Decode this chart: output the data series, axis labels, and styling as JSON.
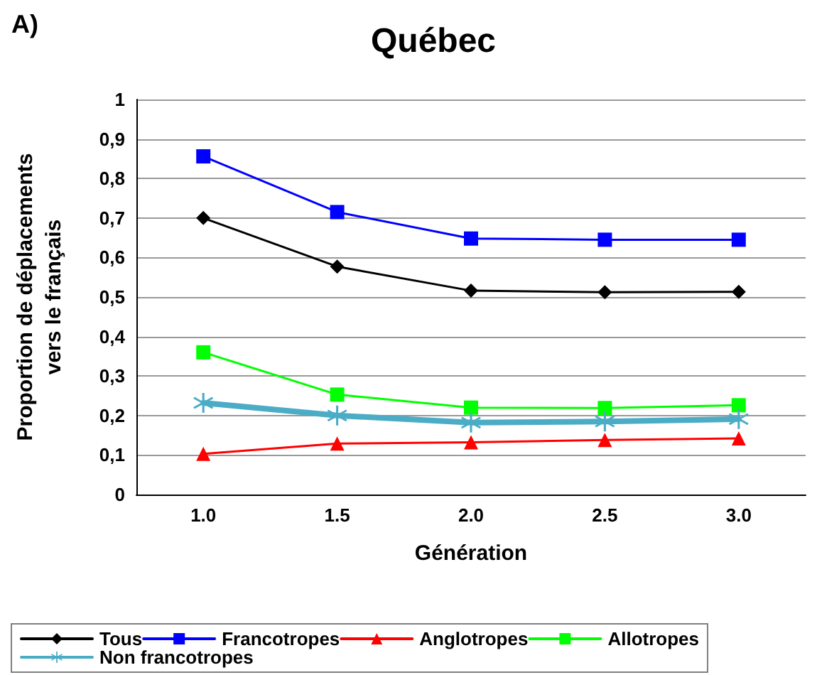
{
  "chart_data": {
    "type": "line",
    "title": "Québec",
    "annotations": [
      "A)"
    ],
    "xlabel": "Génération",
    "ylabel": "Proportion de déplacements\nvers le français",
    "categories": [
      "1.0",
      "1.5",
      "2.0",
      "2.5",
      "3.0"
    ],
    "ylim": [
      0,
      1
    ],
    "yticks": [
      {
        "value": 0,
        "label": "0"
      },
      {
        "value": 0.1,
        "label": "0,1"
      },
      {
        "value": 0.2,
        "label": "0,2"
      },
      {
        "value": 0.3,
        "label": "0,3"
      },
      {
        "value": 0.4,
        "label": "0,4"
      },
      {
        "value": 0.5,
        "label": "0,5"
      },
      {
        "value": 0.6,
        "label": "0,6"
      },
      {
        "value": 0.7,
        "label": "0,7"
      },
      {
        "value": 0.8,
        "label": "0,8"
      },
      {
        "value": 0.9,
        "label": "0,9"
      },
      {
        "value": 1,
        "label": "1"
      }
    ],
    "grid": "y",
    "legend": "bottom",
    "series": [
      {
        "name": "Tous",
        "color": "#000000",
        "marker": "diamond",
        "values": [
          0.7,
          0.577,
          0.516,
          0.512,
          0.513
        ]
      },
      {
        "name": "Francotropes",
        "color": "#0000ff",
        "marker": "square",
        "values": [
          0.856,
          0.715,
          0.648,
          0.645,
          0.645
        ]
      },
      {
        "name": "Anglotropes",
        "color": "#ff0000",
        "marker": "triangle",
        "values": [
          0.103,
          0.129,
          0.132,
          0.138,
          0.142
        ]
      },
      {
        "name": "Allotropes",
        "color": "#00ff00",
        "marker": "square",
        "values": [
          0.36,
          0.253,
          0.22,
          0.219,
          0.226
        ]
      },
      {
        "name": "Non francotropes",
        "color": "#4bacc6",
        "marker": "cross",
        "values": [
          0.232,
          0.2,
          0.182,
          0.185,
          0.191
        ]
      }
    ]
  }
}
